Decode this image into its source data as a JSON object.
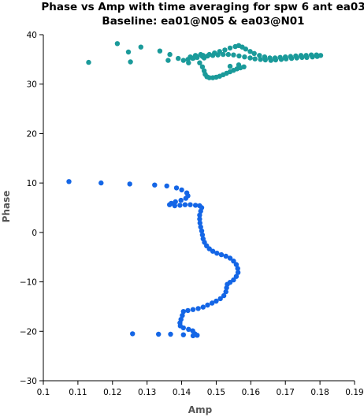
{
  "chart_data": {
    "type": "scatter",
    "title": "Phase vs Amp with time averaging for spw 6 ant ea03",
    "subtitle": "Baseline: ea01@N05 & ea03@N01",
    "xlabel": "Amp",
    "ylabel": "Phase",
    "xlim": [
      0.1,
      0.19
    ],
    "ylim": [
      -30,
      40
    ],
    "xticks": [
      0.1,
      0.11,
      0.12,
      0.13,
      0.14,
      0.15,
      0.16,
      0.17,
      0.18,
      0.19
    ],
    "yticks": [
      -30,
      -20,
      -10,
      0,
      10,
      20,
      30,
      40
    ],
    "grid": false,
    "series": [
      {
        "color": "#1a9a9a",
        "points": [
          [
            0.1131,
            34.4
          ],
          [
            0.1214,
            38.2
          ],
          [
            0.1252,
            34.5
          ],
          [
            0.1246,
            36.5
          ],
          [
            0.1282,
            37.5
          ],
          [
            0.1337,
            36.7
          ],
          [
            0.1361,
            34.8
          ],
          [
            0.1366,
            36.0
          ],
          [
            0.139,
            35.2
          ],
          [
            0.1405,
            34.8
          ],
          [
            0.142,
            34.3
          ],
          [
            0.1435,
            35.3
          ],
          [
            0.1452,
            34.3
          ],
          [
            0.146,
            33.5
          ],
          [
            0.1465,
            32.7
          ],
          [
            0.1468,
            32.0
          ],
          [
            0.1473,
            31.5
          ],
          [
            0.148,
            31.3
          ],
          [
            0.149,
            31.3
          ],
          [
            0.15,
            31.4
          ],
          [
            0.151,
            31.6
          ],
          [
            0.152,
            31.9
          ],
          [
            0.153,
            32.2
          ],
          [
            0.154,
            32.5
          ],
          [
            0.155,
            32.8
          ],
          [
            0.156,
            33.1
          ],
          [
            0.157,
            33.3
          ],
          [
            0.158,
            33.5
          ],
          [
            0.154,
            33.6
          ],
          [
            0.1565,
            33.9
          ],
          [
            0.1425,
            35.5
          ],
          [
            0.1443,
            35.6
          ],
          [
            0.1462,
            35.8
          ],
          [
            0.148,
            36.0
          ],
          [
            0.1495,
            36.3
          ],
          [
            0.151,
            36.6
          ],
          [
            0.1525,
            36.9
          ],
          [
            0.154,
            37.3
          ],
          [
            0.1555,
            37.6
          ],
          [
            0.1565,
            37.8
          ],
          [
            0.1575,
            37.5
          ],
          [
            0.1585,
            37.1
          ],
          [
            0.1598,
            36.6
          ],
          [
            0.161,
            36.2
          ],
          [
            0.1625,
            35.8
          ],
          [
            0.164,
            35.5
          ],
          [
            0.1655,
            35.3
          ],
          [
            0.167,
            35.3
          ],
          [
            0.1685,
            35.4
          ],
          [
            0.17,
            35.5
          ],
          [
            0.1715,
            35.6
          ],
          [
            0.173,
            35.7
          ],
          [
            0.1745,
            35.8
          ],
          [
            0.176,
            35.8
          ],
          [
            0.1775,
            35.9
          ],
          [
            0.179,
            35.9
          ],
          [
            0.1802,
            35.8
          ],
          [
            0.1792,
            35.6
          ],
          [
            0.1778,
            35.5
          ],
          [
            0.1762,
            35.4
          ],
          [
            0.1748,
            35.4
          ],
          [
            0.1733,
            35.3
          ],
          [
            0.1718,
            35.2
          ],
          [
            0.1702,
            35.1
          ],
          [
            0.1688,
            35.0
          ],
          [
            0.1672,
            34.9
          ],
          [
            0.1658,
            34.8
          ],
          [
            0.1642,
            34.9
          ],
          [
            0.1628,
            35.0
          ],
          [
            0.1612,
            35.1
          ],
          [
            0.1598,
            35.3
          ],
          [
            0.1582,
            35.5
          ],
          [
            0.1566,
            35.7
          ],
          [
            0.155,
            35.9
          ],
          [
            0.1535,
            36.0
          ],
          [
            0.152,
            36.0
          ],
          [
            0.1505,
            35.9
          ],
          [
            0.149,
            35.8
          ],
          [
            0.1475,
            35.7
          ],
          [
            0.146,
            35.6
          ],
          [
            0.1445,
            35.4
          ],
          [
            0.1432,
            35.2
          ],
          [
            0.1418,
            35.0
          ],
          [
            0.144,
            35.8
          ],
          [
            0.1455,
            36.0
          ],
          [
            0.1465,
            35.3
          ]
        ]
      },
      {
        "color": "#1466e6",
        "points": [
          [
            0.1074,
            10.3
          ],
          [
            0.1167,
            10.0
          ],
          [
            0.125,
            9.8
          ],
          [
            0.1322,
            9.6
          ],
          [
            0.1357,
            9.4
          ],
          [
            0.1385,
            9.0
          ],
          [
            0.14,
            8.6
          ],
          [
            0.1415,
            8.0
          ],
          [
            0.1418,
            7.4
          ],
          [
            0.1412,
            6.9
          ],
          [
            0.1398,
            6.5
          ],
          [
            0.1382,
            6.2
          ],
          [
            0.137,
            5.9
          ],
          [
            0.1365,
            5.6
          ],
          [
            0.138,
            5.4
          ],
          [
            0.1395,
            5.5
          ],
          [
            0.141,
            5.6
          ],
          [
            0.1425,
            5.6
          ],
          [
            0.144,
            5.5
          ],
          [
            0.1452,
            5.4
          ],
          [
            0.1458,
            5.0
          ],
          [
            0.1455,
            4.3
          ],
          [
            0.1452,
            3.5
          ],
          [
            0.1452,
            2.7
          ],
          [
            0.1453,
            1.9
          ],
          [
            0.1455,
            1.1
          ],
          [
            0.1458,
            0.3
          ],
          [
            0.146,
            -0.5
          ],
          [
            0.1462,
            -1.3
          ],
          [
            0.1466,
            -2.0
          ],
          [
            0.1472,
            -2.7
          ],
          [
            0.148,
            -3.3
          ],
          [
            0.149,
            -3.8
          ],
          [
            0.1502,
            -4.2
          ],
          [
            0.1515,
            -4.5
          ],
          [
            0.1528,
            -4.8
          ],
          [
            0.154,
            -5.2
          ],
          [
            0.155,
            -5.8
          ],
          [
            0.1558,
            -6.5
          ],
          [
            0.1562,
            -7.3
          ],
          [
            0.1563,
            -8.1
          ],
          [
            0.1558,
            -8.9
          ],
          [
            0.155,
            -9.6
          ],
          [
            0.154,
            -10.1
          ],
          [
            0.1532,
            -10.5
          ],
          [
            0.153,
            -11.2
          ],
          [
            0.1528,
            -12.0
          ],
          [
            0.1522,
            -12.8
          ],
          [
            0.1512,
            -13.4
          ],
          [
            0.15,
            -13.9
          ],
          [
            0.1488,
            -14.3
          ],
          [
            0.1475,
            -14.7
          ],
          [
            0.1462,
            -15.1
          ],
          [
            0.1448,
            -15.4
          ],
          [
            0.1433,
            -15.6
          ],
          [
            0.1418,
            -15.8
          ],
          [
            0.1405,
            -16.0
          ],
          [
            0.1402,
            -16.8
          ],
          [
            0.1398,
            -17.6
          ],
          [
            0.1395,
            -18.3
          ],
          [
            0.1396,
            -18.9
          ],
          [
            0.1405,
            -19.3
          ],
          [
            0.142,
            -19.6
          ],
          [
            0.1432,
            -19.9
          ],
          [
            0.1438,
            -20.5
          ],
          [
            0.1445,
            -20.8
          ],
          [
            0.1433,
            -20.9
          ],
          [
            0.1405,
            -20.7
          ],
          [
            0.1368,
            -20.6
          ],
          [
            0.1333,
            -20.6
          ],
          [
            0.1258,
            -20.5
          ]
        ]
      }
    ]
  }
}
